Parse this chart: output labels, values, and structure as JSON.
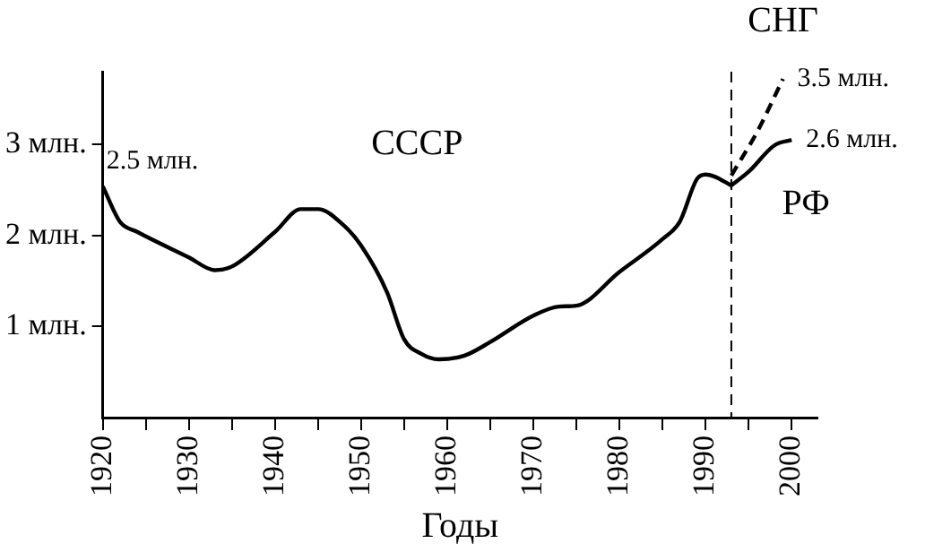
{
  "chart_data": {
    "type": "line",
    "xlabel": "Годы",
    "xlim": [
      1920,
      2003
    ],
    "xticks": [
      1920,
      {
        "value": 1925,
        "label": null
      },
      1930,
      {
        "value": 1935,
        "label": null
      },
      1940,
      {
        "value": 1945,
        "label": null
      },
      1950,
      {
        "value": 1955,
        "label": null
      },
      1960,
      {
        "value": 1965,
        "label": null
      },
      1970,
      {
        "value": 1975,
        "label": null
      },
      1980,
      {
        "value": 1985,
        "label": null
      },
      1990,
      {
        "value": 1995,
        "label": null
      },
      2000
    ],
    "ylim": [
      0,
      3.8
    ],
    "yticks": [
      {
        "value": 1,
        "label": "1 млн."
      },
      {
        "value": 2,
        "label": "2 млн."
      },
      {
        "value": 3,
        "label": "3 млн."
      }
    ],
    "grid": false,
    "legend": false,
    "marker": "none",
    "series": [
      {
        "name": "СССР",
        "color": "#000000",
        "line_style": "solid",
        "x": [
          1920,
          1922,
          1924,
          1930,
          1933,
          1935,
          1940,
          1943,
          1945,
          1948,
          1950,
          1953,
          1955,
          1957,
          1959,
          1962,
          1965,
          1970,
          1973,
          1975,
          1980,
          1985,
          1987,
          1989,
          1990,
          1991,
          1993
        ],
        "values": [
          2.54,
          2.15,
          2.04,
          1.76,
          1.62,
          1.66,
          2.04,
          2.29,
          2.29,
          2.11,
          1.89,
          1.38,
          0.86,
          0.7,
          0.64,
          0.68,
          0.83,
          1.12,
          1.22,
          1.23,
          1.6,
          1.96,
          2.15,
          2.62,
          2.67,
          2.65,
          2.55
        ]
      },
      {
        "name": "РФ",
        "color": "#000000",
        "line_style": "solid",
        "x": [
          1993,
          1995,
          1998,
          2000
        ],
        "values": [
          2.55,
          2.7,
          2.99,
          3.05
        ]
      },
      {
        "name": "СНГ",
        "color": "#000000",
        "line_style": "dashed",
        "x": [
          1993,
          1996,
          1999
        ],
        "values": [
          2.66,
          3.14,
          3.72
        ]
      }
    ],
    "ref_lines": [
      {
        "axis": "x",
        "value": 1993,
        "color": "#000000",
        "line_style": "dashed"
      }
    ],
    "annotations": [
      {
        "text": "2.5 млн.",
        "x": 1920,
        "y": 2.54
      },
      {
        "text": "3.5 млн.",
        "x": 1999,
        "y": 3.72
      },
      {
        "text": "2.6 млн.",
        "x": 2000,
        "y": 3.05
      }
    ]
  }
}
